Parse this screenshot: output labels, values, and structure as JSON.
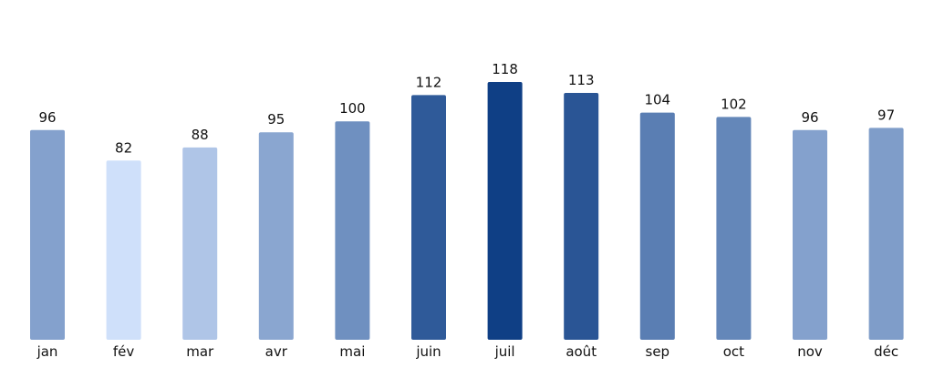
{
  "chart_data": {
    "type": "bar",
    "title": "",
    "xlabel": "",
    "ylabel": "",
    "categories": [
      "jan",
      "fév",
      "mar",
      "avr",
      "mai",
      "juin",
      "juil",
      "août",
      "sep",
      "oct",
      "nov",
      "déc"
    ],
    "values": [
      96,
      82,
      88,
      95,
      100,
      112,
      118,
      113,
      104,
      102,
      96,
      97
    ],
    "ylim": [
      0,
      118
    ],
    "grid": false,
    "legend": "none",
    "data_labels": true,
    "color_scale": {
      "low": "#cfe0fa",
      "high": "#0f3f85"
    }
  }
}
